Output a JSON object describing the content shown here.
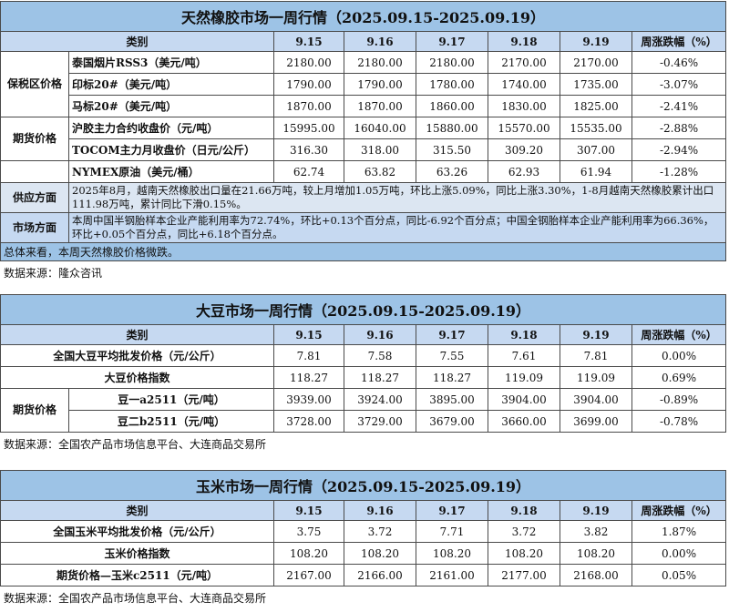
{
  "colors": {
    "title_bg": "#9dc3e6",
    "header_bg": "#c6d9f1",
    "supply_bg": "#dce6f2",
    "market_bg": "#c6d9f1",
    "summary_bg": "#9dc3e6"
  },
  "tables": [
    {
      "id": "rubber",
      "title": "天然橡胶市场一周行情（2025.09.15-2025.09.19）",
      "header": {
        "category": "类别",
        "dates": [
          "9.15",
          "9.16",
          "9.17",
          "9.18",
          "9.19"
        ],
        "change": "周涨跌幅（%）"
      },
      "item_align": "left",
      "rows": [
        {
          "group": "保税区价格",
          "group_span": 3,
          "item": "泰国烟片RSS3（美元/吨）",
          "values": [
            "2180.00",
            "2180.00",
            "2180.00",
            "2170.00",
            "2170.00"
          ],
          "change": "-0.46%"
        },
        {
          "item": "印标20#（美元/吨）",
          "values": [
            "1790.00",
            "1790.00",
            "1780.00",
            "1740.00",
            "1735.00"
          ],
          "change": "-3.07%"
        },
        {
          "item": "马标20#（美元/吨）",
          "values": [
            "1870.00",
            "1870.00",
            "1860.00",
            "1830.00",
            "1825.00"
          ],
          "change": "-2.41%"
        },
        {
          "group": "期货价格",
          "group_span": 2,
          "item": "沪胶主力合约收盘价（元/吨）",
          "values": [
            "15995.00",
            "16040.00",
            "15880.00",
            "15570.00",
            "15535.00"
          ],
          "change": "-2.88%"
        },
        {
          "item": "TOCOM主力月收盘价（日元/公斤）",
          "values": [
            "316.30",
            "318.00",
            "315.50",
            "309.20",
            "307.00"
          ],
          "change": "-2.94%"
        },
        {
          "group": "",
          "group_span": 1,
          "item": "NYMEX原油（美元/桶）",
          "values": [
            "62.74",
            "63.82",
            "63.26",
            "62.93",
            "61.94"
          ],
          "change": "-1.28%"
        }
      ],
      "notes": [
        {
          "kind": "supply",
          "label": "供应方面",
          "text": "2025年8月，越南天然橡胶出口量在21.66万吨，较上月增加1.05万吨，环比上涨5.09%，同比上涨3.30%，1-8月越南天然橡胶累计出口111.98万吨，累计同比下滑0.15%。"
        },
        {
          "kind": "market",
          "label": "市场方面",
          "text": "本周中国半钢胎样本企业产能利用率为72.74%，环比+0.13个百分点，同比-6.92个百分点；中国全钢胎样本企业产能利用率为66.36%，环比+0.05个百分点，同比+6.18个百分点。"
        }
      ],
      "summary": "总体来看，本周天然橡胶价格微跌。",
      "source": "数据来源：隆众咨讯"
    },
    {
      "id": "soybean",
      "title": "大豆市场一周行情（2025.09.15-2025.09.19）",
      "header": {
        "category": "类别",
        "dates": [
          "9.15",
          "9.16",
          "9.17",
          "9.18",
          "9.19"
        ],
        "change": "周涨跌幅（%）"
      },
      "item_align": "center",
      "rows": [
        {
          "item": "全国大豆平均批发价格（元/公斤）",
          "values": [
            "7.81",
            "7.58",
            "7.55",
            "7.61",
            "7.81"
          ],
          "change": "0.00%"
        },
        {
          "item": "大豆价格指数",
          "values": [
            "118.27",
            "118.27",
            "118.27",
            "119.09",
            "119.09"
          ],
          "change": "0.69%"
        },
        {
          "group": "期货价格",
          "group_span": 2,
          "item": "豆一a2511（元/吨）",
          "values": [
            "3939.00",
            "3924.00",
            "3895.00",
            "3904.00",
            "3904.00"
          ],
          "change": "-0.89%"
        },
        {
          "item": "豆二b2511（元/吨）",
          "values": [
            "3728.00",
            "3729.00",
            "3679.00",
            "3660.00",
            "3699.00"
          ],
          "change": "-0.78%"
        }
      ],
      "source": "数据来源：全国农产品市场信息平台、大连商品交易所"
    },
    {
      "id": "corn",
      "title": "玉米市场一周行情（2025.09.15-2025.09.19）",
      "header": {
        "category": "类别",
        "dates": [
          "9.15",
          "9.16",
          "9.17",
          "9.18",
          "9.19"
        ],
        "change": "周涨跌幅（%）"
      },
      "item_align": "center",
      "rows": [
        {
          "item": "全国玉米平均批发价格（元/公斤）",
          "values": [
            "3.75",
            "3.72",
            "7.71",
            "3.72",
            "3.82"
          ],
          "change": "1.87%"
        },
        {
          "item": "玉米价格指数",
          "values": [
            "108.20",
            "108.20",
            "108.20",
            "108.20",
            "108.20"
          ],
          "change": "0.00%"
        },
        {
          "item": "期货价格—玉米c2511（元/吨）",
          "values": [
            "2167.00",
            "2166.00",
            "2161.00",
            "2177.00",
            "2168.00"
          ],
          "change": "0.05%"
        }
      ],
      "source": "数据来源：全国农产品市场信息平台、大连商品交易所"
    }
  ]
}
